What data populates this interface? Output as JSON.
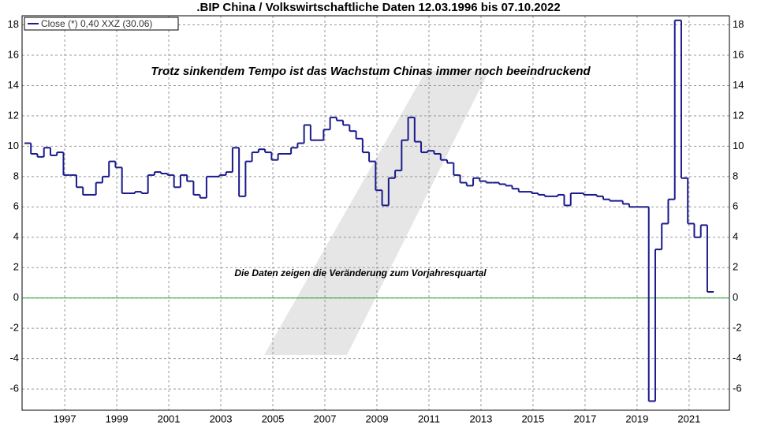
{
  "chart_data": {
    "type": "line",
    "line_style": "steps",
    "title": ".BIP China / Volkswirtschaftliche Daten 12.03.1996 bis 07.10.2022",
    "annotations": [
      "Trotz sinkendem Tempo ist das Wachstum Chinas immer noch beeindruckend",
      "Die Daten zeigen die Veränderung zum Vorjahresquartal"
    ],
    "x_step": 0.25,
    "x_start": 1995.45,
    "x_end": 2021.95,
    "series": [
      {
        "name": "Close (*) 0,40 XXZ (30.06)",
        "color": "#1a1a8c",
        "values": [
          10.2,
          9.5,
          9.3,
          9.9,
          9.4,
          9.6,
          8.1,
          8.1,
          7.3,
          6.8,
          6.8,
          7.6,
          8.0,
          9.0,
          8.6,
          6.9,
          6.9,
          7.0,
          6.9,
          8.1,
          8.3,
          8.2,
          8.1,
          7.3,
          8.1,
          7.7,
          6.8,
          6.6,
          8.0,
          8.0,
          8.1,
          8.3,
          9.9,
          6.7,
          9.0,
          9.6,
          9.8,
          9.6,
          9.1,
          9.5,
          9.5,
          9.9,
          10.2,
          11.4,
          10.4,
          10.4,
          11.1,
          11.9,
          11.7,
          11.4,
          11.0,
          10.5,
          9.6,
          9.0,
          7.1,
          6.1,
          7.9,
          8.4,
          10.4,
          11.9,
          10.3,
          9.6,
          9.7,
          9.5,
          9.1,
          8.9,
          8.1,
          7.6,
          7.4,
          7.9,
          7.7,
          7.6,
          7.6,
          7.5,
          7.4,
          7.2,
          7.0,
          7.0,
          6.9,
          6.8,
          6.7,
          6.7,
          6.8,
          6.1,
          6.9,
          6.9,
          6.8,
          6.8,
          6.7,
          6.5,
          6.4,
          6.4,
          6.2,
          6.0,
          6.0,
          6.0,
          -6.8,
          3.2,
          4.9,
          6.5,
          18.3,
          7.9,
          4.9,
          4.0,
          4.8,
          0.4
        ]
      }
    ],
    "zero_line_color": "#2e9e2e",
    "xlim": [
      1995.36,
      2022.55
    ],
    "xticks": [
      1997,
      1999,
      2001,
      2003,
      2005,
      2007,
      2009,
      2011,
      2013,
      2015,
      2017,
      2019,
      2021
    ],
    "ylim": [
      -7.4,
      18.6
    ],
    "yticks": [
      -6,
      -4,
      -2,
      0,
      2,
      4,
      6,
      8,
      10,
      12,
      14,
      16,
      18
    ],
    "grid": true,
    "legend": "top-left"
  }
}
